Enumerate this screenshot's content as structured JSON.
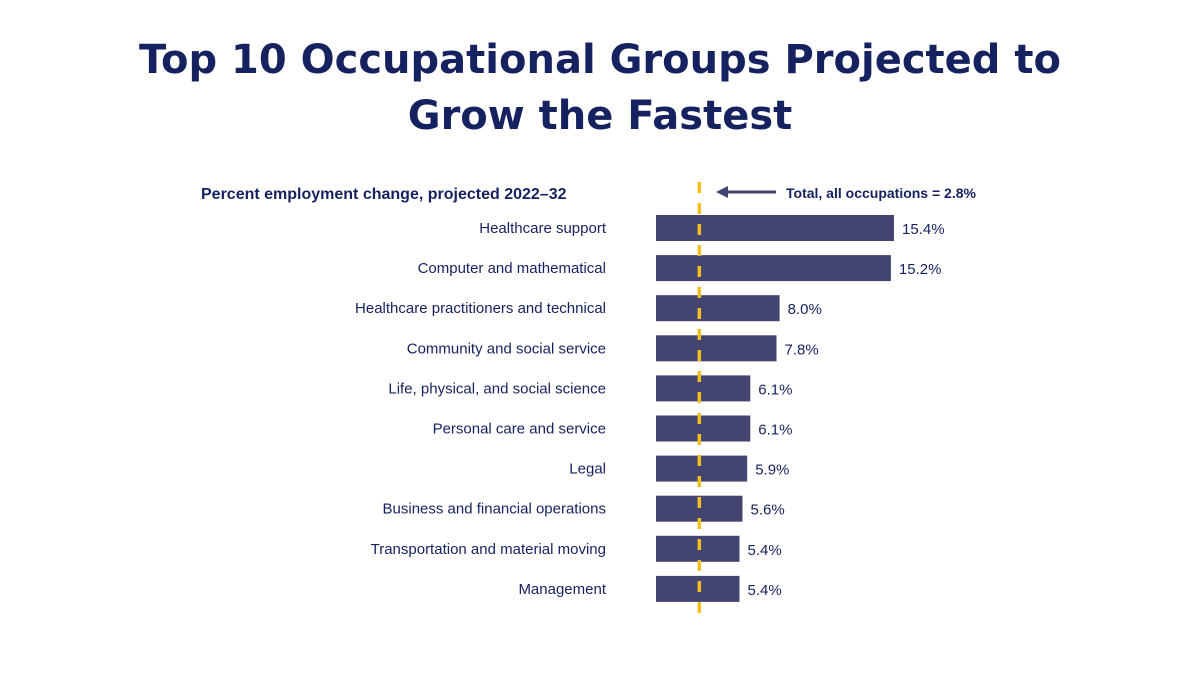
{
  "title_lines": [
    "Top 10 Occupational Groups Projected to",
    "Grow the Fastest"
  ],
  "chart_data": {
    "type": "bar",
    "orientation": "horizontal",
    "title": "Top 10 Occupational Groups Projected to Grow the Fastest",
    "subtitle": "Percent employment change, projected 2022–32",
    "categories": [
      "Healthcare support",
      "Computer and mathematical",
      "Healthcare practitioners and technical",
      "Community and social service",
      "Life, physical, and social science",
      "Personal care and service",
      "Legal ",
      "Business and financial operations",
      "Transportation and material moving",
      "Management"
    ],
    "values": [
      15.4,
      15.2,
      8.0,
      7.8,
      6.1,
      6.1,
      5.9,
      5.6,
      5.4,
      5.4
    ],
    "data_labels": [
      "15.4%",
      "15.2%",
      "8.0%",
      "7.8%",
      "6.1%",
      "6.1%",
      "5.9%",
      "5.6%",
      "5.4%",
      "5.4%"
    ],
    "reference_line": {
      "value": 2.8,
      "label": "Total, all occupations = 2.8%",
      "style": "dashed",
      "color": "#f2c01e"
    },
    "bar_color": "#434570",
    "xlim": [
      0,
      15.4
    ],
    "grid": false,
    "legend": "none"
  }
}
